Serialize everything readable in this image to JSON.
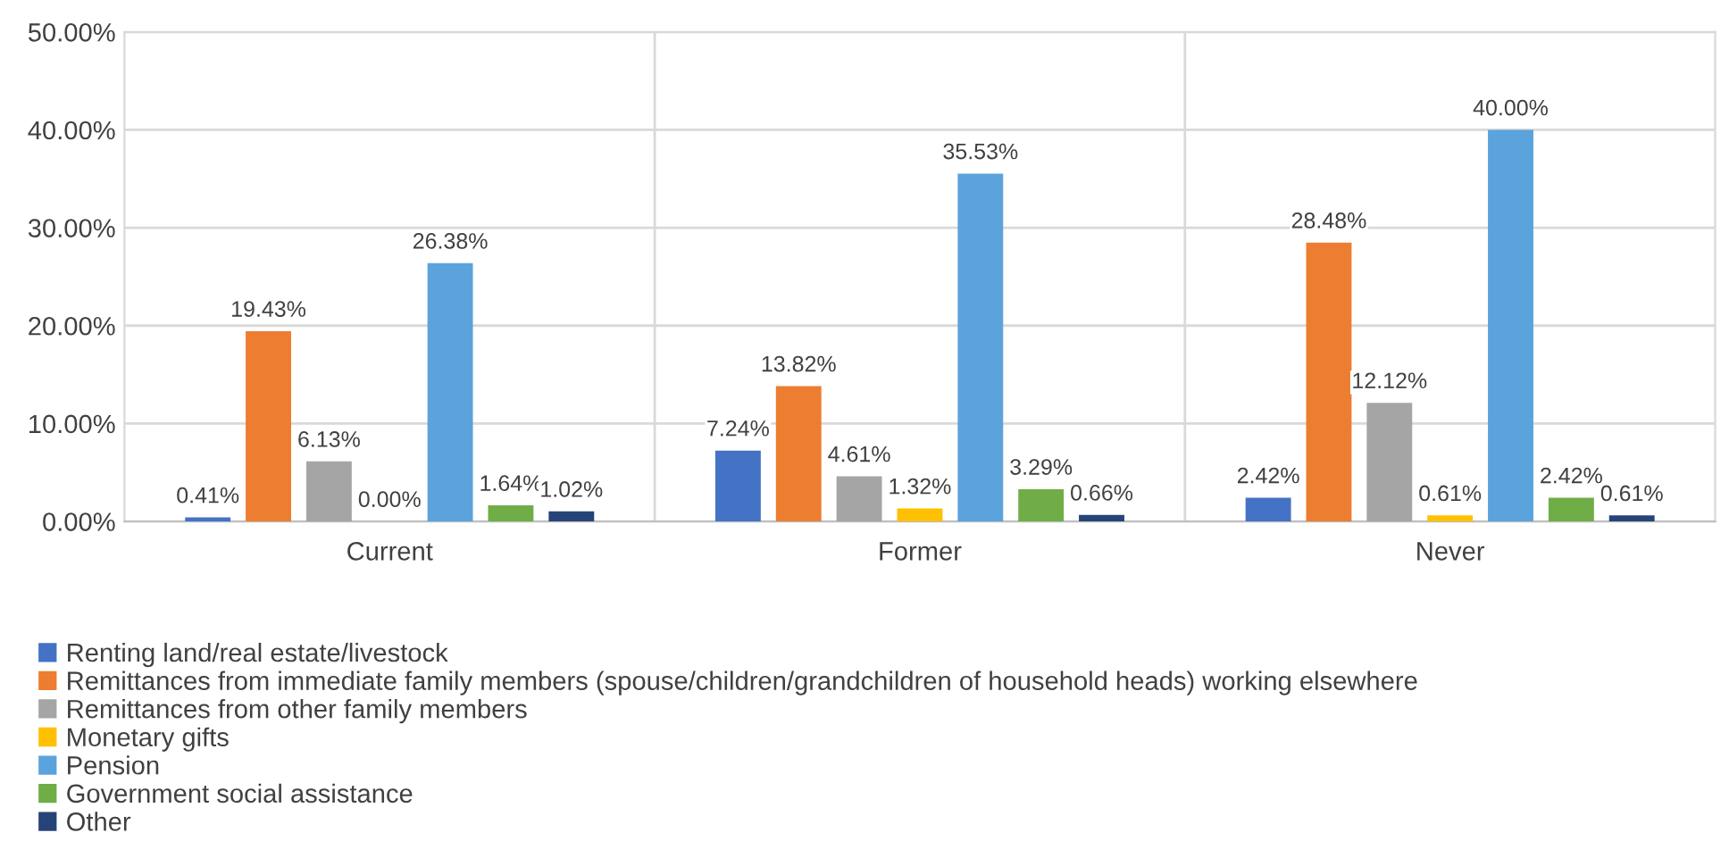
{
  "chart_data": {
    "type": "bar",
    "categories": [
      "Current",
      "Former",
      "Never"
    ],
    "series": [
      {
        "name": "Renting land/real estate/livestock",
        "color": "#4472c4",
        "values": [
          0.41,
          7.24,
          2.42
        ],
        "value_labels": [
          "0.41%",
          "7.24%",
          "2.42%"
        ]
      },
      {
        "name": "Remittances from immediate family members (spouse/children/grandchildren of household heads) working elsewhere",
        "color": "#ed7d31",
        "values": [
          19.43,
          13.82,
          28.48
        ],
        "value_labels": [
          "19.43%",
          "13.82%",
          "28.48%"
        ]
      },
      {
        "name": "Remittances from other family members",
        "color": "#a5a5a5",
        "values": [
          6.13,
          4.61,
          12.12
        ],
        "value_labels": [
          "6.13%",
          "4.61%",
          "12.12%"
        ]
      },
      {
        "name": "Monetary gifts",
        "color": "#ffc000",
        "values": [
          0.0,
          1.32,
          0.61
        ],
        "value_labels": [
          "0.00%",
          "1.32%",
          "0.61%"
        ]
      },
      {
        "name": "Pension",
        "color": "#5ba3dc",
        "values": [
          26.38,
          35.53,
          40.0
        ],
        "value_labels": [
          "26.38%",
          "35.53%",
          "40.00%"
        ]
      },
      {
        "name": "Government social assistance",
        "color": "#70ad47",
        "values": [
          1.64,
          3.29,
          2.42
        ],
        "value_labels": [
          "1.64%",
          "3.29%",
          "2.42%"
        ]
      },
      {
        "name": "Other",
        "color": "#264478",
        "values": [
          1.02,
          0.66,
          0.61
        ],
        "value_labels": [
          "1.02%",
          "0.66%",
          "0.61%"
        ]
      }
    ],
    "ylim": [
      0,
      50
    ],
    "yticks": [
      {
        "value": 0,
        "label": "0.00%"
      },
      {
        "value": 10,
        "label": "10.00%"
      },
      {
        "value": 20,
        "label": "20.00%"
      },
      {
        "value": 30,
        "label": "30.00%"
      },
      {
        "value": 40,
        "label": "40.00%"
      },
      {
        "value": 50,
        "label": "50.00%"
      }
    ],
    "grid": true,
    "legend": "bottom"
  }
}
